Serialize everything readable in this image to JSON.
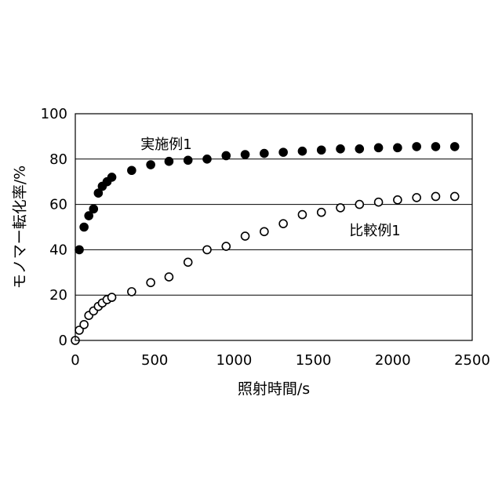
{
  "chart_data": {
    "type": "scatter",
    "title": "",
    "xlabel": "照射時間/s",
    "ylabel": "モノマー転化率/%",
    "xlim": [
      0,
      2500
    ],
    "ylim": [
      0,
      100
    ],
    "xticks": [
      0,
      500,
      1000,
      1500,
      2000,
      2500
    ],
    "yticks": [
      0,
      20,
      40,
      60,
      80,
      100
    ],
    "grid": "horizontal",
    "legend": "none",
    "series": [
      {
        "name": "実施例1",
        "marker": "filled-circle",
        "color": "#000000",
        "x": [
          25,
          55,
          85,
          115,
          145,
          170,
          200,
          230,
          355,
          475,
          590,
          710,
          830,
          950,
          1070,
          1190,
          1310,
          1430,
          1550,
          1670,
          1790,
          1910,
          2030,
          2150,
          2270,
          2390
        ],
        "y": [
          40,
          50,
          55,
          58,
          65,
          68,
          70,
          72,
          75,
          77.5,
          79,
          79.5,
          80,
          81.5,
          82,
          82.5,
          83,
          83.5,
          84,
          84.5,
          84.5,
          85,
          85,
          85.5,
          85.5,
          85.5
        ]
      },
      {
        "name": "比較例1",
        "marker": "open-circle",
        "color": "#000000",
        "x": [
          0,
          25,
          55,
          85,
          115,
          145,
          170,
          200,
          230,
          355,
          475,
          590,
          710,
          830,
          950,
          1070,
          1190,
          1310,
          1430,
          1550,
          1670,
          1790,
          1910,
          2030,
          2150,
          2270,
          2390
        ],
        "y": [
          0,
          4.5,
          7,
          11,
          13,
          15,
          16.5,
          18,
          19,
          21.5,
          25.5,
          28,
          34.5,
          40,
          41.5,
          46,
          48,
          51.5,
          55.5,
          56.5,
          58.5,
          60,
          61,
          62,
          63,
          63.5,
          63.5
        ]
      }
    ],
    "annotations": [
      "実施例1",
      "比較例1"
    ]
  }
}
